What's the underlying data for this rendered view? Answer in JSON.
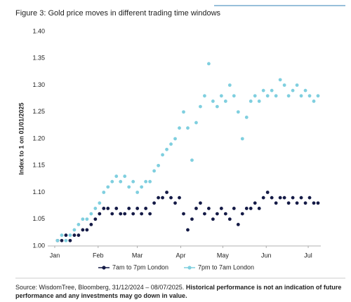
{
  "chart_data": {
    "type": "scatter",
    "title": "Figure 3: Gold price moves in different trading time windows",
    "y_label": "Index to 1 on 01/01/2025",
    "source": "Source: WisdomTree, Bloomberg, 31/12/2024 – 08/07/2025.",
    "disclaimer": "Historical performance is not an indication of future performance and any investments may go down in value.",
    "x": [
      2,
      5,
      8,
      11,
      14,
      17,
      20,
      23,
      26,
      29,
      32,
      35,
      38,
      41,
      44,
      47,
      50,
      53,
      56,
      59,
      62,
      65,
      68,
      71,
      74,
      77,
      80,
      83,
      86,
      89,
      92,
      95,
      98,
      101,
      104,
      107,
      110,
      113,
      116,
      119,
      122,
      125,
      128,
      131,
      134,
      137,
      140,
      143,
      146,
      149,
      152,
      155,
      158,
      161,
      164,
      167,
      170,
      173,
      176,
      179,
      182,
      185,
      188
    ],
    "series": [
      {
        "name": "7am to 7pm London",
        "color": "#141a46",
        "values": [
          1.01,
          1.01,
          1.02,
          1.01,
          1.02,
          1.02,
          1.03,
          1.03,
          1.04,
          1.05,
          1.06,
          1.07,
          1.07,
          1.06,
          1.07,
          1.06,
          1.06,
          1.07,
          1.06,
          1.07,
          1.06,
          1.07,
          1.06,
          1.08,
          1.09,
          1.09,
          1.1,
          1.09,
          1.08,
          1.09,
          1.06,
          1.03,
          1.05,
          1.07,
          1.08,
          1.06,
          1.07,
          1.05,
          1.06,
          1.07,
          1.06,
          1.05,
          1.07,
          1.04,
          1.06,
          1.07,
          1.07,
          1.08,
          1.07,
          1.09,
          1.1,
          1.09,
          1.08,
          1.09,
          1.09,
          1.08,
          1.09,
          1.08,
          1.09,
          1.08,
          1.09,
          1.08,
          1.08
        ]
      },
      {
        "name": "7pm to 7am London",
        "color": "#7fcfdf",
        "values": [
          1.01,
          1.02,
          1.01,
          1.02,
          1.03,
          1.04,
          1.05,
          1.05,
          1.06,
          1.07,
          1.08,
          1.1,
          1.11,
          1.12,
          1.13,
          1.12,
          1.13,
          1.11,
          1.12,
          1.1,
          1.11,
          1.12,
          1.12,
          1.14,
          1.15,
          1.17,
          1.18,
          1.19,
          1.2,
          1.22,
          1.25,
          1.22,
          1.16,
          1.23,
          1.26,
          1.28,
          1.34,
          1.27,
          1.26,
          1.28,
          1.27,
          1.3,
          1.28,
          1.25,
          1.2,
          1.24,
          1.27,
          1.28,
          1.27,
          1.29,
          1.28,
          1.29,
          1.28,
          1.31,
          1.3,
          1.28,
          1.29,
          1.3,
          1.28,
          1.29,
          1.28,
          1.27,
          1.28
        ]
      }
    ],
    "xlim": [
      -5,
      190
    ],
    "xticks": [
      {
        "value": 0,
        "label": "Jan"
      },
      {
        "value": 31,
        "label": "Feb"
      },
      {
        "value": 59,
        "label": "Mar"
      },
      {
        "value": 90,
        "label": "Apr"
      },
      {
        "value": 120,
        "label": "May"
      },
      {
        "value": 151,
        "label": "Jun"
      },
      {
        "value": 181,
        "label": "Jul"
      }
    ],
    "ylim": [
      1.0,
      1.4
    ],
    "yticks": [
      {
        "value": 1.0,
        "label": "1.00"
      },
      {
        "value": 1.05,
        "label": "1.05"
      },
      {
        "value": 1.1,
        "label": "1.10"
      },
      {
        "value": 1.15,
        "label": "1.15"
      },
      {
        "value": 1.2,
        "label": "1.20"
      },
      {
        "value": 1.25,
        "label": "1.25"
      },
      {
        "value": 1.3,
        "label": "1.30"
      },
      {
        "value": 1.35,
        "label": "1.35"
      },
      {
        "value": 1.4,
        "label": "1.40"
      }
    ],
    "legend": "bottom",
    "grid": false
  }
}
